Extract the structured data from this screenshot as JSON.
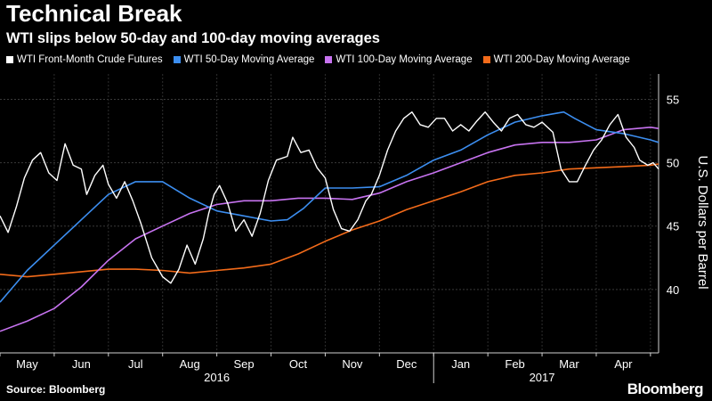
{
  "header": {
    "title": "Technical Break",
    "subtitle": "WTI slips below 50-day and 100-day moving averages"
  },
  "footer": {
    "source": "Source: Bloomberg",
    "logo": "Bloomberg"
  },
  "chart_data": {
    "type": "line",
    "ylabel": "U.S. Dollars per Barrel",
    "ylim": [
      35,
      57
    ],
    "yticks": [
      40,
      45,
      50,
      55
    ],
    "grid": true,
    "legend_position": "top",
    "months": [
      {
        "label": "May",
        "x": 0.5
      },
      {
        "label": "Jun",
        "x": 1.5
      },
      {
        "label": "Jul",
        "x": 2.5
      },
      {
        "label": "Aug",
        "x": 3.5
      },
      {
        "label": "Sep",
        "x": 4.5
      },
      {
        "label": "Oct",
        "x": 5.5
      },
      {
        "label": "Nov",
        "x": 6.5
      },
      {
        "label": "Dec",
        "x": 7.5
      },
      {
        "label": "Jan",
        "x": 8.5
      },
      {
        "label": "Feb",
        "x": 9.5
      },
      {
        "label": "Mar",
        "x": 10.5
      },
      {
        "label": "Apr",
        "x": 11.5
      }
    ],
    "years": [
      {
        "label": "2016",
        "x": 4.0
      },
      {
        "label": "2017",
        "x": 10.0
      }
    ],
    "year_divider_x": 8.0,
    "xlim": [
      0,
      12.15
    ],
    "series": [
      {
        "name": "WTI Front-Month Crude Futures",
        "color": "#ffffff",
        "points": [
          [
            0.0,
            45.8
          ],
          [
            0.15,
            44.5
          ],
          [
            0.3,
            46.5
          ],
          [
            0.45,
            48.8
          ],
          [
            0.6,
            50.2
          ],
          [
            0.75,
            50.8
          ],
          [
            0.9,
            49.2
          ],
          [
            1.05,
            48.6
          ],
          [
            1.2,
            51.5
          ],
          [
            1.35,
            49.8
          ],
          [
            1.5,
            49.5
          ],
          [
            1.6,
            47.5
          ],
          [
            1.75,
            49.0
          ],
          [
            1.9,
            49.8
          ],
          [
            2.0,
            48.3
          ],
          [
            2.15,
            47.2
          ],
          [
            2.3,
            48.5
          ],
          [
            2.45,
            47.0
          ],
          [
            2.6,
            45.2
          ],
          [
            2.8,
            42.5
          ],
          [
            3.0,
            41.0
          ],
          [
            3.15,
            40.5
          ],
          [
            3.3,
            41.6
          ],
          [
            3.45,
            43.5
          ],
          [
            3.6,
            42.0
          ],
          [
            3.75,
            44.0
          ],
          [
            3.85,
            46.0
          ],
          [
            3.95,
            47.5
          ],
          [
            4.05,
            48.2
          ],
          [
            4.2,
            46.8
          ],
          [
            4.35,
            44.6
          ],
          [
            4.5,
            45.5
          ],
          [
            4.65,
            44.2
          ],
          [
            4.8,
            46.0
          ],
          [
            4.95,
            48.6
          ],
          [
            5.1,
            50.2
          ],
          [
            5.3,
            50.5
          ],
          [
            5.4,
            52.0
          ],
          [
            5.55,
            50.8
          ],
          [
            5.7,
            51.0
          ],
          [
            5.85,
            49.6
          ],
          [
            6.0,
            48.8
          ],
          [
            6.15,
            46.3
          ],
          [
            6.3,
            44.8
          ],
          [
            6.45,
            44.6
          ],
          [
            6.6,
            45.5
          ],
          [
            6.75,
            47.0
          ],
          [
            6.85,
            47.5
          ],
          [
            7.0,
            49.0
          ],
          [
            7.15,
            51.0
          ],
          [
            7.3,
            52.5
          ],
          [
            7.45,
            53.5
          ],
          [
            7.6,
            54.0
          ],
          [
            7.75,
            53.0
          ],
          [
            7.9,
            52.8
          ],
          [
            8.05,
            53.5
          ],
          [
            8.2,
            53.5
          ],
          [
            8.35,
            52.5
          ],
          [
            8.5,
            53.0
          ],
          [
            8.65,
            52.5
          ],
          [
            8.8,
            53.3
          ],
          [
            8.95,
            54.0
          ],
          [
            9.1,
            53.2
          ],
          [
            9.25,
            52.5
          ],
          [
            9.4,
            53.5
          ],
          [
            9.55,
            53.8
          ],
          [
            9.7,
            53.0
          ],
          [
            9.85,
            52.8
          ],
          [
            10.0,
            53.2
          ],
          [
            10.2,
            52.4
          ],
          [
            10.35,
            49.5
          ],
          [
            10.5,
            48.5
          ],
          [
            10.65,
            48.5
          ],
          [
            10.8,
            49.8
          ],
          [
            10.95,
            51.0
          ],
          [
            11.1,
            51.8
          ],
          [
            11.25,
            53.0
          ],
          [
            11.4,
            53.8
          ],
          [
            11.55,
            52.0
          ],
          [
            11.7,
            51.2
          ],
          [
            11.8,
            50.2
          ],
          [
            11.95,
            49.8
          ],
          [
            12.05,
            50.0
          ],
          [
            12.15,
            49.5
          ]
        ]
      },
      {
        "name": "WTI 50-Day Moving Average",
        "color": "#3c8ef0",
        "points": [
          [
            0.0,
            39.0
          ],
          [
            0.5,
            41.5
          ],
          [
            1.0,
            43.5
          ],
          [
            1.5,
            45.5
          ],
          [
            2.0,
            47.5
          ],
          [
            2.5,
            48.5
          ],
          [
            3.0,
            48.5
          ],
          [
            3.5,
            47.2
          ],
          [
            4.0,
            46.2
          ],
          [
            4.5,
            45.8
          ],
          [
            5.0,
            45.4
          ],
          [
            5.3,
            45.5
          ],
          [
            5.6,
            46.4
          ],
          [
            6.0,
            48.0
          ],
          [
            6.5,
            48.0
          ],
          [
            7.0,
            48.1
          ],
          [
            7.5,
            49.0
          ],
          [
            8.0,
            50.2
          ],
          [
            8.5,
            51.0
          ],
          [
            9.0,
            52.2
          ],
          [
            9.5,
            53.2
          ],
          [
            10.0,
            53.7
          ],
          [
            10.4,
            54.0
          ],
          [
            10.6,
            53.5
          ],
          [
            11.0,
            52.6
          ],
          [
            11.5,
            52.3
          ],
          [
            12.0,
            51.8
          ],
          [
            12.15,
            51.6
          ]
        ]
      },
      {
        "name": "WTI 100-Day Moving Average",
        "color": "#c773f0",
        "points": [
          [
            0.0,
            36.7
          ],
          [
            0.5,
            37.5
          ],
          [
            1.0,
            38.5
          ],
          [
            1.5,
            40.2
          ],
          [
            2.0,
            42.3
          ],
          [
            2.5,
            44.0
          ],
          [
            3.0,
            45.0
          ],
          [
            3.5,
            46.0
          ],
          [
            4.0,
            46.7
          ],
          [
            4.5,
            47.0
          ],
          [
            5.0,
            47.0
          ],
          [
            5.5,
            47.2
          ],
          [
            6.0,
            47.2
          ],
          [
            6.5,
            47.1
          ],
          [
            7.0,
            47.6
          ],
          [
            7.5,
            48.5
          ],
          [
            8.0,
            49.2
          ],
          [
            8.5,
            50.0
          ],
          [
            9.0,
            50.8
          ],
          [
            9.5,
            51.4
          ],
          [
            10.0,
            51.6
          ],
          [
            10.5,
            51.6
          ],
          [
            11.0,
            51.8
          ],
          [
            11.5,
            52.6
          ],
          [
            12.0,
            52.8
          ],
          [
            12.15,
            52.7
          ]
        ]
      },
      {
        "name": "WTI 200-Day Moving Average",
        "color": "#f36b1a",
        "points": [
          [
            0.0,
            41.2
          ],
          [
            0.5,
            41.0
          ],
          [
            1.0,
            41.2
          ],
          [
            1.5,
            41.4
          ],
          [
            2.0,
            41.6
          ],
          [
            2.5,
            41.6
          ],
          [
            3.0,
            41.5
          ],
          [
            3.5,
            41.3
          ],
          [
            4.0,
            41.5
          ],
          [
            4.5,
            41.7
          ],
          [
            5.0,
            42.0
          ],
          [
            5.5,
            42.8
          ],
          [
            6.0,
            43.8
          ],
          [
            6.5,
            44.7
          ],
          [
            7.0,
            45.4
          ],
          [
            7.5,
            46.3
          ],
          [
            8.0,
            47.0
          ],
          [
            8.5,
            47.7
          ],
          [
            9.0,
            48.5
          ],
          [
            9.5,
            49.0
          ],
          [
            10.0,
            49.2
          ],
          [
            10.5,
            49.5
          ],
          [
            11.0,
            49.6
          ],
          [
            11.5,
            49.7
          ],
          [
            12.0,
            49.8
          ],
          [
            12.15,
            49.9
          ]
        ]
      }
    ]
  }
}
